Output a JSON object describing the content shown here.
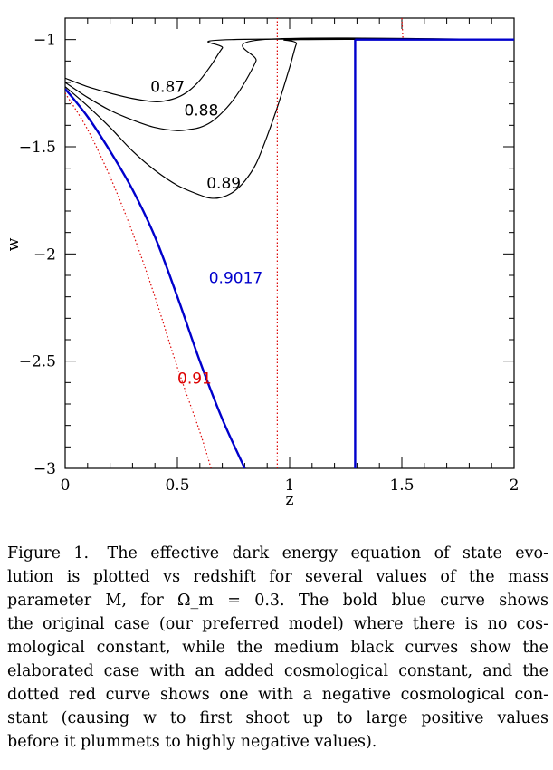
{
  "chart_data": {
    "type": "line",
    "xlabel": "z",
    "ylabel": "w",
    "xlim": [
      0,
      2
    ],
    "ylim": [
      -3,
      -0.9
    ],
    "x_ticks": [
      "0",
      "0.5",
      "1",
      "1.5",
      "2"
    ],
    "x_tick_values": [
      0,
      0.5,
      1,
      1.5,
      2
    ],
    "y_ticks": [
      "-1",
      "-1.5",
      "-2",
      "-2.5",
      "-3"
    ],
    "y_tick_values": [
      -1,
      -1.5,
      -2,
      -2.5,
      -3
    ],
    "series": [
      {
        "name": "0.87",
        "color": "#000000",
        "style": "solid",
        "points": [
          [
            0,
            -1.18
          ],
          [
            0.1,
            -1.22
          ],
          [
            0.2,
            -1.25
          ],
          [
            0.3,
            -1.275
          ],
          [
            0.4,
            -1.29
          ],
          [
            0.45,
            -1.285
          ],
          [
            0.5,
            -1.27
          ],
          [
            0.55,
            -1.24
          ],
          [
            0.6,
            -1.19
          ],
          [
            0.65,
            -1.12
          ],
          [
            0.7,
            -1.04
          ],
          [
            0.74,
            -1.0
          ],
          [
            2,
            -1.0
          ]
        ],
        "label_at": [
          0.38,
          -1.245
        ]
      },
      {
        "name": "0.88",
        "color": "#000000",
        "style": "solid",
        "points": [
          [
            0,
            -1.2
          ],
          [
            0.1,
            -1.27
          ],
          [
            0.2,
            -1.33
          ],
          [
            0.3,
            -1.375
          ],
          [
            0.4,
            -1.41
          ],
          [
            0.5,
            -1.425
          ],
          [
            0.55,
            -1.42
          ],
          [
            0.6,
            -1.41
          ],
          [
            0.65,
            -1.385
          ],
          [
            0.7,
            -1.34
          ],
          [
            0.75,
            -1.28
          ],
          [
            0.8,
            -1.2
          ],
          [
            0.85,
            -1.1
          ],
          [
            0.88,
            -1.0
          ],
          [
            2,
            -1.0
          ]
        ],
        "label_at": [
          0.53,
          -1.355
        ]
      },
      {
        "name": "0.89",
        "color": "#000000",
        "style": "solid",
        "points": [
          [
            0,
            -1.22
          ],
          [
            0.1,
            -1.31
          ],
          [
            0.2,
            -1.41
          ],
          [
            0.3,
            -1.52
          ],
          [
            0.4,
            -1.61
          ],
          [
            0.5,
            -1.68
          ],
          [
            0.6,
            -1.725
          ],
          [
            0.65,
            -1.74
          ],
          [
            0.7,
            -1.735
          ],
          [
            0.75,
            -1.71
          ],
          [
            0.8,
            -1.66
          ],
          [
            0.85,
            -1.58
          ],
          [
            0.9,
            -1.45
          ],
          [
            0.95,
            -1.3
          ],
          [
            1.0,
            -1.13
          ],
          [
            1.03,
            -1.02
          ],
          [
            1.05,
            -1.0
          ],
          [
            2,
            -1.0
          ]
        ],
        "label_at": [
          0.63,
          -1.695
        ]
      },
      {
        "name": "0.9017",
        "color": "#0000cc",
        "style": "bold",
        "points": [
          [
            0,
            -1.23
          ],
          [
            0.1,
            -1.36
          ],
          [
            0.2,
            -1.52
          ],
          [
            0.3,
            -1.7
          ],
          [
            0.4,
            -1.92
          ],
          [
            0.5,
            -2.2
          ],
          [
            0.6,
            -2.5
          ],
          [
            0.7,
            -2.77
          ],
          [
            0.8,
            -3.0
          ]
        ],
        "extra_segments": [
          [
            [
              1.292,
              -3.0
            ],
            [
              1.292,
              -1.0
            ]
          ],
          [
            [
              1.292,
              -1.0
            ],
            [
              2,
              -1.0
            ]
          ]
        ],
        "label_at": [
          0.64,
          -2.135
        ]
      },
      {
        "name": "0.91",
        "color": "#dd0000",
        "style": "dotted",
        "points": [
          [
            0,
            -1.25
          ],
          [
            0.1,
            -1.42
          ],
          [
            0.2,
            -1.64
          ],
          [
            0.3,
            -1.9
          ],
          [
            0.4,
            -2.2
          ],
          [
            0.5,
            -2.53
          ],
          [
            0.6,
            -2.83
          ],
          [
            0.65,
            -3.0
          ]
        ],
        "extra_segments": [
          [
            [
              0.945,
              -3.0
            ],
            [
              0.945,
              -0.9
            ]
          ],
          [
            [
              1.5,
              -0.9
            ],
            [
              1.505,
              -1.0
            ]
          ]
        ],
        "label_at": [
          0.5,
          -2.605
        ]
      }
    ]
  },
  "caption": {
    "label": "Figure 1.",
    "lines": [
      "The effective dark energy equation of state evo-",
      "lution is plotted vs redshift for several values of the mass",
      "parameter M, for Ω_m = 0.3.  The bold blue curve shows",
      "the original case (our preferred model) where there is no cos-",
      "mological constant, while the medium black curves show the",
      "elaborated case with an added cosmological constant, and the",
      "dotted red curve shows one with a negative cosmological con-",
      "stant (causing w to first shoot up to large positive values",
      "before it plummets to highly negative values)."
    ]
  }
}
